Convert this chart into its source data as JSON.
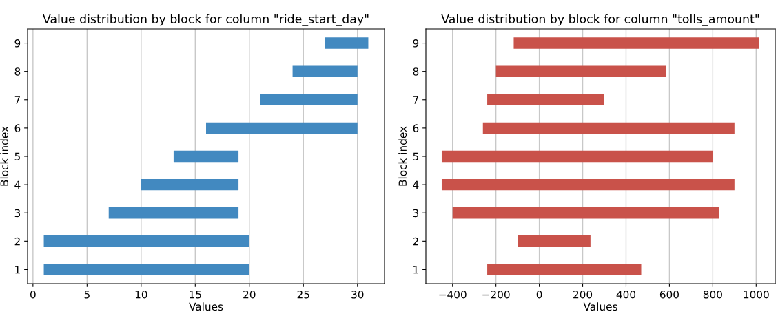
{
  "chart_data": [
    {
      "type": "bar",
      "orientation": "horizontal",
      "title": "Value distribution by block for column \"ride_start_day\"",
      "xlabel": "Values",
      "ylabel": "Block index",
      "categories": [
        "9",
        "8",
        "7",
        "6",
        "5",
        "4",
        "3",
        "2",
        "1"
      ],
      "base": [
        27,
        24,
        21,
        16,
        13,
        10,
        7,
        1,
        1
      ],
      "values": [
        4,
        6,
        9,
        14,
        6,
        9,
        12,
        19,
        19
      ],
      "color": "#4289c0",
      "xlim": [
        -0.5,
        32.5
      ],
      "xticks": [
        0,
        5,
        10,
        15,
        20,
        25,
        30
      ],
      "grid": "x"
    },
    {
      "type": "bar",
      "orientation": "horizontal",
      "title": "Value distribution by block for column \"tolls_amount\"",
      "xlabel": "Values",
      "ylabel": "Block index",
      "categories": [
        "9",
        "8",
        "7",
        "6",
        "5",
        "4",
        "3",
        "2",
        "1"
      ],
      "base": [
        -118,
        -200,
        -240,
        -260,
        -450,
        -450,
        -400,
        -100,
        -240
      ],
      "values": [
        1132,
        783,
        538,
        1160,
        1250,
        1350,
        1230,
        336,
        710
      ],
      "color": "#c9524a",
      "xlim": [
        -523,
        1088
      ],
      "xticks": [
        {
          "value": -400,
          "label": "−400"
        },
        {
          "value": -200,
          "label": "−200"
        },
        0,
        200,
        400,
        600,
        800,
        1000
      ],
      "grid": "x"
    }
  ]
}
